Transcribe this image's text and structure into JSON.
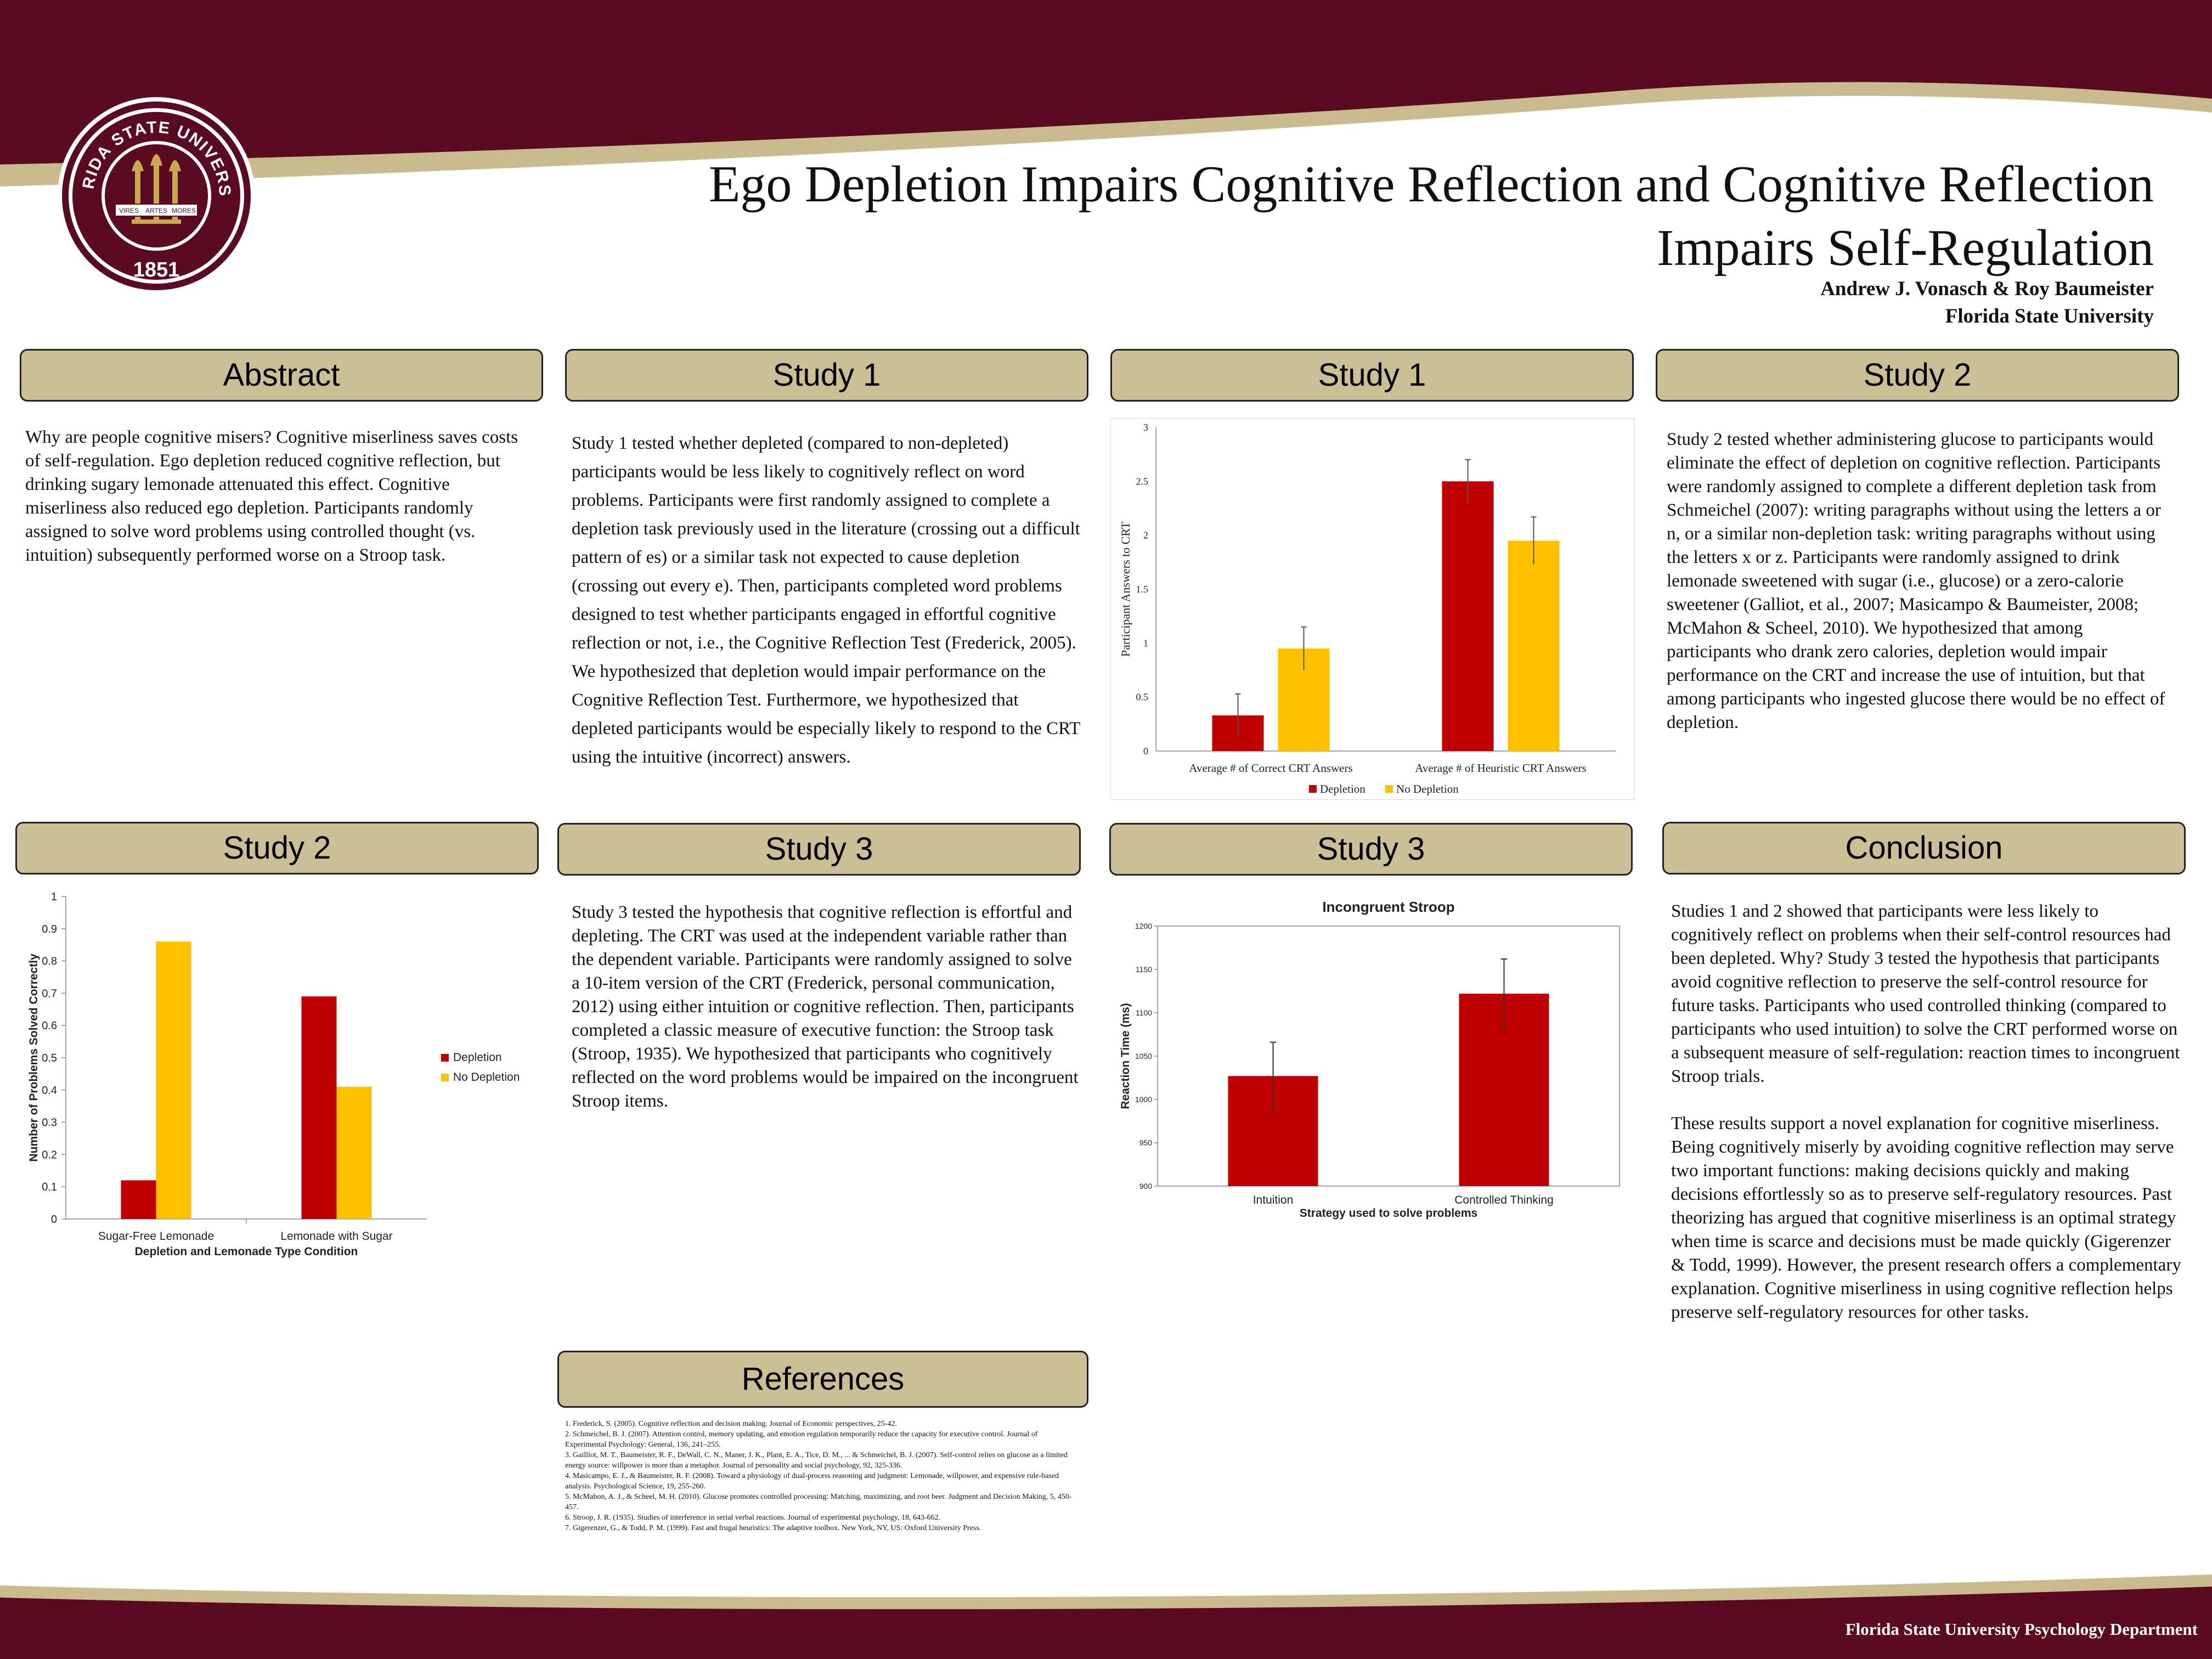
{
  "header": {
    "title_line1": "Ego Depletion Impairs Cognitive Reflection and Cognitive Reflection",
    "title_line2": "Impairs Self-Regulation",
    "authors": "Andrew J. Vonasch & Roy Baumeister",
    "affiliation": "Florida State University",
    "seal": {
      "top_text": "FLORIDA STATE UNIVERSITY",
      "year": "1851",
      "banner": [
        "VIRES",
        "ARTES",
        "MORES"
      ]
    }
  },
  "colors": {
    "garnet": "#5a0b21",
    "gold": "#cbc095",
    "depletion": "#c00000",
    "no_depletion": "#ffc000"
  },
  "sections": {
    "abstract": {
      "heading": "Abstract",
      "text": "Why are people cognitive misers? Cognitive miserliness saves costs of self-regulation. Ego depletion reduced cognitive reflection, but drinking sugary lemonade attenuated this effect. Cognitive miserliness also reduced ego depletion. Participants randomly assigned to solve word problems using controlled thought (vs. intuition) subsequently performed worse on a Stroop task."
    },
    "study1_text": {
      "heading": "Study 1",
      "text": "Study 1 tested whether depleted (compared to non-depleted) participants would be less likely to cognitively reflect on word problems. Participants were first randomly assigned to complete a depletion task previously used in the literature (crossing out a difficult pattern of es) or a similar task not expected to cause depletion (crossing out every e). Then, participants completed word problems designed to test whether participants engaged in effortful cognitive reflection or not, i.e., the Cognitive Reflection Test (Frederick, 2005). We hypothesized that depletion would impair performance on the Cognitive Reflection Test. Furthermore, we hypothesized that depleted participants would be especially likely to respond to the CRT using the intuitive (incorrect) answers."
    },
    "study1_chart": {
      "heading": "Study 1"
    },
    "study2_text": {
      "heading": "Study 2",
      "text": "Study 2 tested whether administering glucose to participants would eliminate the effect of depletion on cognitive reflection. Participants were randomly assigned to complete a different depletion task from Schmeichel (2007): writing paragraphs without using the letters a or n, or a similar non-depletion task: writing paragraphs without using the letters x or z. Participants were randomly assigned to drink lemonade sweetened with sugar (i.e., glucose) or a zero-calorie sweetener (Galliot, et al., 2007; Masicampo & Baumeister, 2008; McMahon & Scheel, 2010). We hypothesized that among participants who drank zero calories, depletion would impair performance on the CRT and increase the use of intuition, but that among participants who ingested glucose there would be no effect of depletion."
    },
    "study2_chart": {
      "heading": "Study 2"
    },
    "study3_text": {
      "heading": "Study 3",
      "text": "Study 3 tested the hypothesis that cognitive reflection is effortful and depleting. The CRT was used at the independent variable rather than the dependent variable. Participants were randomly assigned to solve a 10-item version of the CRT (Frederick, personal communication, 2012) using either intuition or cognitive reflection. Then, participants completed a classic measure of executive function: the Stroop task (Stroop, 1935). We hypothesized that participants who cognitively reflected on the word problems would be impaired on the incongruent Stroop items."
    },
    "study3_chart": {
      "heading": "Study 3"
    },
    "conclusion": {
      "heading": "Conclusion",
      "p1": "Studies 1 and 2 showed that participants were less likely to cognitively reflect on problems when their self-control resources had been depleted. Why? Study 3 tested the hypothesis that participants avoid cognitive reflection to preserve the self-control resource for future tasks. Participants who used controlled thinking (compared to participants who used intuition) to solve the CRT performed worse on a subsequent measure of self-regulation: reaction times to incongruent Stroop trials.",
      "p2": "These results support a novel explanation for cognitive miserliness. Being cognitively miserly by avoiding cognitive reflection may serve two important functions: making decisions quickly and making decisions effortlessly so as to preserve self-regulatory resources. Past theorizing has argued that cognitive miserliness is an optimal strategy when time is scarce and decisions must be made quickly (Gigerenzer & Todd, 1999). However, the present research offers a complementary explanation. Cognitive miserliness in using cognitive reflection helps preserve self-regulatory resources for other tasks."
    },
    "references": {
      "heading": "References",
      "items": [
        "1. Frederick, S. (2005). Cognitive reflection and decision making. Journal of Economic perspectives, 25-42.",
        "2. Schmeichel, B. J. (2007). Attention control, memory updating, and emotion regulation temporarily reduce the capacity for executive control. Journal of Experimental Psychology: General, 136, 241–255.",
        "3. Gailliot, M. T., Baumeister, R. F., DeWall, C. N., Maner, J. K., Plant, E. A., Tice, D. M., ... & Schmeichel, B. J. (2007). Self-control relies on glucose as a limited energy source: willpower is more than a metaphor. Journal of personality and social psychology, 92, 325-336.",
        "4. Masicampo, E. J., & Baumeister, R. F. (2008). Toward a physiology of dual-process reasoning and judgment: Lemonade, willpower, and expensive rule-based analysis. Psychological Science, 19, 255-260.",
        "5. McMahon, A. J., & Scheel, M. H. (2010). Glucose promotes controlled processing: Matching, maximizing, and root beer. Judgment and Decision Making, 5, 450-457.",
        "6. Stroop, J. R. (1935). Studies of interference in serial verbal reactions. Journal of experimental psychology, 18, 643-662.",
        "7. Gigerenzer, G., & Todd, P. M. (1999). Fast and frugal heuristics: The adaptive toolbox. New York, NY, US: Oxford University Press."
      ]
    }
  },
  "footer": {
    "text": "Florida State University Psychology Department"
  },
  "chart_data": [
    {
      "id": "study1",
      "type": "bar",
      "categories": [
        "Average # of Correct CRT Answers",
        "Average # of Heuristic CRT Answers"
      ],
      "series": [
        {
          "name": "Depletion",
          "values": [
            0.33,
            2.5
          ],
          "errors": [
            0.2,
            0.2
          ]
        },
        {
          "name": "No Depletion",
          "values": [
            0.95,
            1.95
          ],
          "errors": [
            0.2,
            0.22
          ]
        }
      ],
      "ylabel": "Participant Answers to CRT",
      "ylim": [
        0,
        3
      ],
      "yticks": [
        "0",
        "0.5",
        "1",
        "1.5",
        "2",
        "2.5",
        "3"
      ],
      "legend": "bottom"
    },
    {
      "id": "study2",
      "type": "bar",
      "categories": [
        "Sugar-Free Lemonade",
        "Lemonade with Sugar"
      ],
      "series": [
        {
          "name": "Depletion",
          "values": [
            0.12,
            0.69
          ]
        },
        {
          "name": "No Depletion",
          "values": [
            0.86,
            0.41
          ]
        }
      ],
      "xlabel": "Depletion and Lemonade Type Condition",
      "ylabel": "Number of Problems Solved Correctly",
      "ylim": [
        0,
        1
      ],
      "yticks": [
        "0",
        "0.1",
        "0.2",
        "0.3",
        "0.4",
        "0.5",
        "0.6",
        "0.7",
        "0.8",
        "0.9",
        "1"
      ],
      "legend": "right"
    },
    {
      "id": "study3",
      "type": "bar",
      "title": "Incongruent Stroop",
      "categories": [
        "Intuition",
        "Controlled Thinking"
      ],
      "series": [
        {
          "values": [
            1027,
            1122
          ],
          "errors": [
            39,
            40
          ]
        }
      ],
      "xlabel": "Strategy used to solve problems",
      "ylabel": "Reaction Time (ms)",
      "ylim": [
        900,
        1200
      ],
      "yticks": [
        "900",
        "950",
        "1000",
        "1050",
        "1100",
        "1150",
        "1200"
      ]
    }
  ]
}
